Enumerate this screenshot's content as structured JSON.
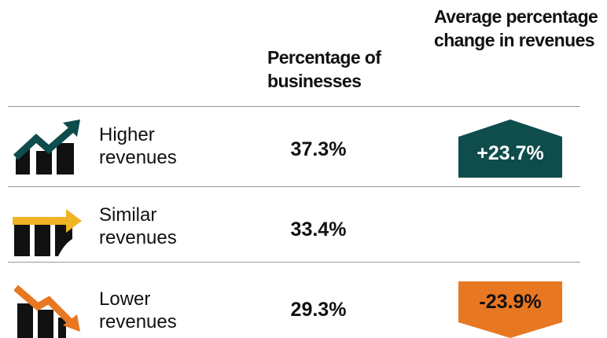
{
  "table": {
    "headers": [
      "Percentage of businesses",
      "Average percentage change in revenues"
    ],
    "rows": [
      {
        "label": "Higher revenues",
        "percentage": "37.3%",
        "change": "+23.7%"
      },
      {
        "label": "Similar revenues",
        "percentage": "33.4%"
      },
      {
        "label": "Lower revenues",
        "percentage": "29.3%",
        "change": "-23.9%"
      }
    ]
  }
}
